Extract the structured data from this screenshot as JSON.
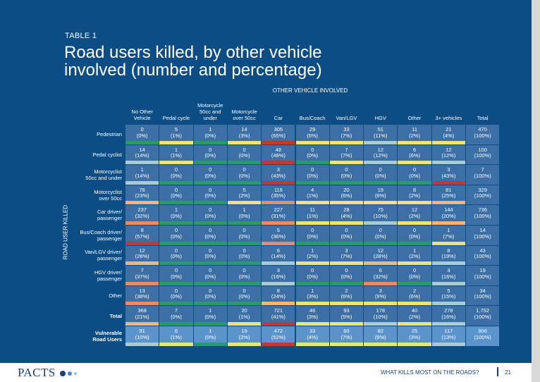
{
  "header": {
    "label": "TABLE 1",
    "title": "Road users killed, by other vehicle\ninvolved (number and percentage)"
  },
  "table": {
    "group_label": "OTHER VEHICLE INVOLVED",
    "side_label": "ROAD USER KILLED",
    "columns": [
      "No Other\nVehicle",
      "Pedal cycle",
      "Motorcycle\n50cc and\nunder",
      "Motorcycle\nover 50cc",
      "Car",
      "Bus/Coach",
      "Van/LGV",
      "HGV",
      "Other",
      "3+ vehicles",
      "Total"
    ],
    "rows": [
      {
        "label": "Pedestrian",
        "cells": [
          [
            "0",
            "(0%)",
            "#2b9a6b"
          ],
          [
            "5",
            "(1%)",
            "#eee37b"
          ],
          [
            "1",
            "(0%)",
            "#2b9a6b"
          ],
          [
            "14",
            "(3%)",
            "#eee37b"
          ],
          [
            "305",
            "(65%)",
            "#c2392f"
          ],
          [
            "29",
            "(6%)",
            "#eee37b"
          ],
          [
            "33",
            "(7%)",
            "#eee37b"
          ],
          [
            "51",
            "(11%)",
            "#a9cbd3"
          ],
          [
            "11",
            "(2%)",
            "#eee37b"
          ],
          [
            "21",
            "(4%)",
            "#eee37b"
          ],
          [
            "470",
            "(100%)",
            null
          ]
        ]
      },
      {
        "label": "Pedal cyclist",
        "cells": [
          [
            "14",
            "(14%)",
            "#a9cbd3"
          ],
          [
            "1",
            "(1%)",
            "#eee37b"
          ],
          [
            "0",
            "(0%)",
            "#2b9a6b"
          ],
          [
            "0",
            "(0%)",
            "#2b9a6b"
          ],
          [
            "48",
            "(48%)",
            "#c2392f"
          ],
          [
            "0",
            "(0%)",
            "#2b9a6b"
          ],
          [
            "7",
            "(7%)",
            "#eee37b"
          ],
          [
            "12",
            "(12%)",
            "#a9cbd3"
          ],
          [
            "6",
            "(6%)",
            "#eee37b"
          ],
          [
            "12",
            "(12%)",
            "#a9cbd3"
          ],
          [
            "100",
            "(100%)",
            null
          ]
        ]
      },
      {
        "label": "Motorcyclist\n50cc and under",
        "cells": [
          [
            "1",
            "(14%)",
            "#a9cbd3"
          ],
          [
            "0",
            "(0%)",
            "#2b9a6b"
          ],
          [
            "0",
            "(0%)",
            "#2b9a6b"
          ],
          [
            "0",
            "(0%)",
            "#2b9a6b"
          ],
          [
            "3",
            "(43%)",
            "#c2392f"
          ],
          [
            "0",
            "(0%)",
            "#2b9a6b"
          ],
          [
            "0",
            "(0%)",
            "#2b9a6b"
          ],
          [
            "0",
            "(0%)",
            "#2b9a6b"
          ],
          [
            "0",
            "(0%)",
            "#2b9a6b"
          ],
          [
            "3",
            "(43%)",
            "#c2392f"
          ],
          [
            "7",
            "(100%)",
            null
          ]
        ]
      },
      {
        "label": "Motorcyclist\nover 50cc",
        "cells": [
          [
            "76",
            "(23%)",
            "#f2b679"
          ],
          [
            "0",
            "(0%)",
            "#2b9a6b"
          ],
          [
            "0",
            "(0%)",
            "#2b9a6b"
          ],
          [
            "5",
            "(2%)",
            "#eee37b"
          ],
          [
            "116",
            "(35%)",
            "#e58b6e"
          ],
          [
            "4",
            "(1%)",
            "#eee37b"
          ],
          [
            "20",
            "(6%)",
            "#eee37b"
          ],
          [
            "19",
            "(6%)",
            "#eee37b"
          ],
          [
            "8",
            "(2%)",
            "#eee37b"
          ],
          [
            "81",
            "(25%)",
            "#f2b679"
          ],
          [
            "329",
            "(100%)",
            null
          ]
        ]
      },
      {
        "label": "Car driver/\npassenger",
        "cells": [
          [
            "237",
            "(32%)",
            "#e58b6e"
          ],
          [
            "1",
            "(0%)",
            "#2b9a6b"
          ],
          [
            "0",
            "(0%)",
            "#2b9a6b"
          ],
          [
            "1",
            "(0%)",
            "#2b9a6b"
          ],
          [
            "227",
            "(31%)",
            "#e58b6e"
          ],
          [
            "11",
            "(1%)",
            "#eee37b"
          ],
          [
            "28",
            "(4%)",
            "#eee37b"
          ],
          [
            "75",
            "(10%)",
            "#a9cbd3"
          ],
          [
            "12",
            "(2%)",
            "#eee37b"
          ],
          [
            "144",
            "(20%)",
            "#f2b679"
          ],
          [
            "736",
            "(100%)",
            null
          ]
        ]
      },
      {
        "label": "Bus/Coach driver/\npassenger",
        "cells": [
          [
            "8",
            "(57%)",
            "#c2392f"
          ],
          [
            "0",
            "(0%)",
            "#2b9a6b"
          ],
          [
            "0",
            "(0%)",
            "#2b9a6b"
          ],
          [
            "0",
            "(0%)",
            "#2b9a6b"
          ],
          [
            "5",
            "(36%)",
            "#e58b6e"
          ],
          [
            "0",
            "(0%)",
            "#2b9a6b"
          ],
          [
            "0",
            "(0%)",
            "#2b9a6b"
          ],
          [
            "0",
            "(0%)",
            "#2b9a6b"
          ],
          [
            "0",
            "(0%)",
            "#2b9a6b"
          ],
          [
            "1",
            "(7%)",
            "#eee37b"
          ],
          [
            "14",
            "(100%)",
            null
          ]
        ]
      },
      {
        "label": "Van/LGV driver/\npassenger",
        "cells": [
          [
            "12",
            "(28%)",
            "#f2b679"
          ],
          [
            "0",
            "(0%)",
            "#2b9a6b"
          ],
          [
            "0",
            "(0%)",
            "#2b9a6b"
          ],
          [
            "0",
            "(0%)",
            "#2b9a6b"
          ],
          [
            "6",
            "(14%)",
            "#a9cbd3"
          ],
          [
            "1",
            "(2%)",
            "#eee37b"
          ],
          [
            "3",
            "(7%)",
            "#eee37b"
          ],
          [
            "12",
            "(28%)",
            "#f2b679"
          ],
          [
            "1",
            "(2%)",
            "#eee37b"
          ],
          [
            "8",
            "(19%)",
            "#a9cbd3"
          ],
          [
            "43",
            "(100%)",
            null
          ]
        ]
      },
      {
        "label": "HGV driver/\npassenger",
        "cells": [
          [
            "7",
            "(37%)",
            "#e58b6e"
          ],
          [
            "0",
            "(0%)",
            "#2b9a6b"
          ],
          [
            "0",
            "(0%)",
            "#2b9a6b"
          ],
          [
            "0",
            "(0%)",
            "#2b9a6b"
          ],
          [
            "3",
            "(16%)",
            "#a9cbd3"
          ],
          [
            "0",
            "(0%)",
            "#2b9a6b"
          ],
          [
            "0",
            "(0%)",
            "#2b9a6b"
          ],
          [
            "6",
            "(32%)",
            "#e58b6e"
          ],
          [
            "0",
            "(0%)",
            "#2b9a6b"
          ],
          [
            "3",
            "(16%)",
            "#a9cbd3"
          ],
          [
            "19",
            "(100%)",
            null
          ]
        ]
      },
      {
        "label": "Other",
        "cells": [
          [
            "13",
            "(38%)",
            "#e58b6e"
          ],
          [
            "0",
            "(0%)",
            "#2b9a6b"
          ],
          [
            "0",
            "(0%)",
            "#2b9a6b"
          ],
          [
            "0",
            "(0%)",
            "#2b9a6b"
          ],
          [
            "8",
            "(24%)",
            "#f2b679"
          ],
          [
            "1",
            "(3%)",
            "#eee37b"
          ],
          [
            "2",
            "(6%)",
            "#eee37b"
          ],
          [
            "3",
            "(9%)",
            "#eee37b"
          ],
          [
            "2",
            "(6%)",
            "#eee37b"
          ],
          [
            "5",
            "(15%)",
            "#a9cbd3"
          ],
          [
            "34",
            "(100%)",
            null
          ]
        ]
      },
      {
        "label": "Total",
        "cells": [
          [
            "368",
            "(21%)",
            "#f2b679"
          ],
          [
            "7",
            "(0%)",
            "#2b9a6b"
          ],
          [
            "1",
            "(0%)",
            "#2b9a6b"
          ],
          [
            "20",
            "(1%)",
            "#eee37b"
          ],
          [
            "721",
            "(41%)",
            "#c2392f"
          ],
          [
            "46",
            "(3%)",
            "#eee37b"
          ],
          [
            "93",
            "(5%)",
            "#eee37b"
          ],
          [
            "178",
            "(10%)",
            "#a9cbd3"
          ],
          [
            "40",
            "(2%)",
            "#eee37b"
          ],
          [
            "278",
            "(16%)",
            "#a9cbd3"
          ],
          [
            "1,752",
            "(100%)",
            null
          ]
        ]
      },
      {
        "label": "Vulnerable\nRoad Users",
        "cells": [
          [
            "91",
            "(10%)",
            "#a9cbd3"
          ],
          [
            "6",
            "(1%)",
            "#eee37b"
          ],
          [
            "1",
            "(0%)",
            "#2b9a6b"
          ],
          [
            "19",
            "(2%)",
            "#eee37b"
          ],
          [
            "472",
            "(52%)",
            "#c2392f"
          ],
          [
            "33",
            "(4%)",
            "#eee37b"
          ],
          [
            "60",
            "(7%)",
            "#eee37b"
          ],
          [
            "82",
            "(9%)",
            "#eee37b"
          ],
          [
            "25",
            "(3%)",
            "#eee37b"
          ],
          [
            "117",
            "(13%)",
            "#a9cbd3"
          ],
          [
            "906",
            "(100%)",
            null
          ]
        ]
      }
    ]
  },
  "footer": {
    "brand": "PACTS",
    "text": "WHAT KILLS MOST ON THE ROADS?",
    "page": "21"
  }
}
